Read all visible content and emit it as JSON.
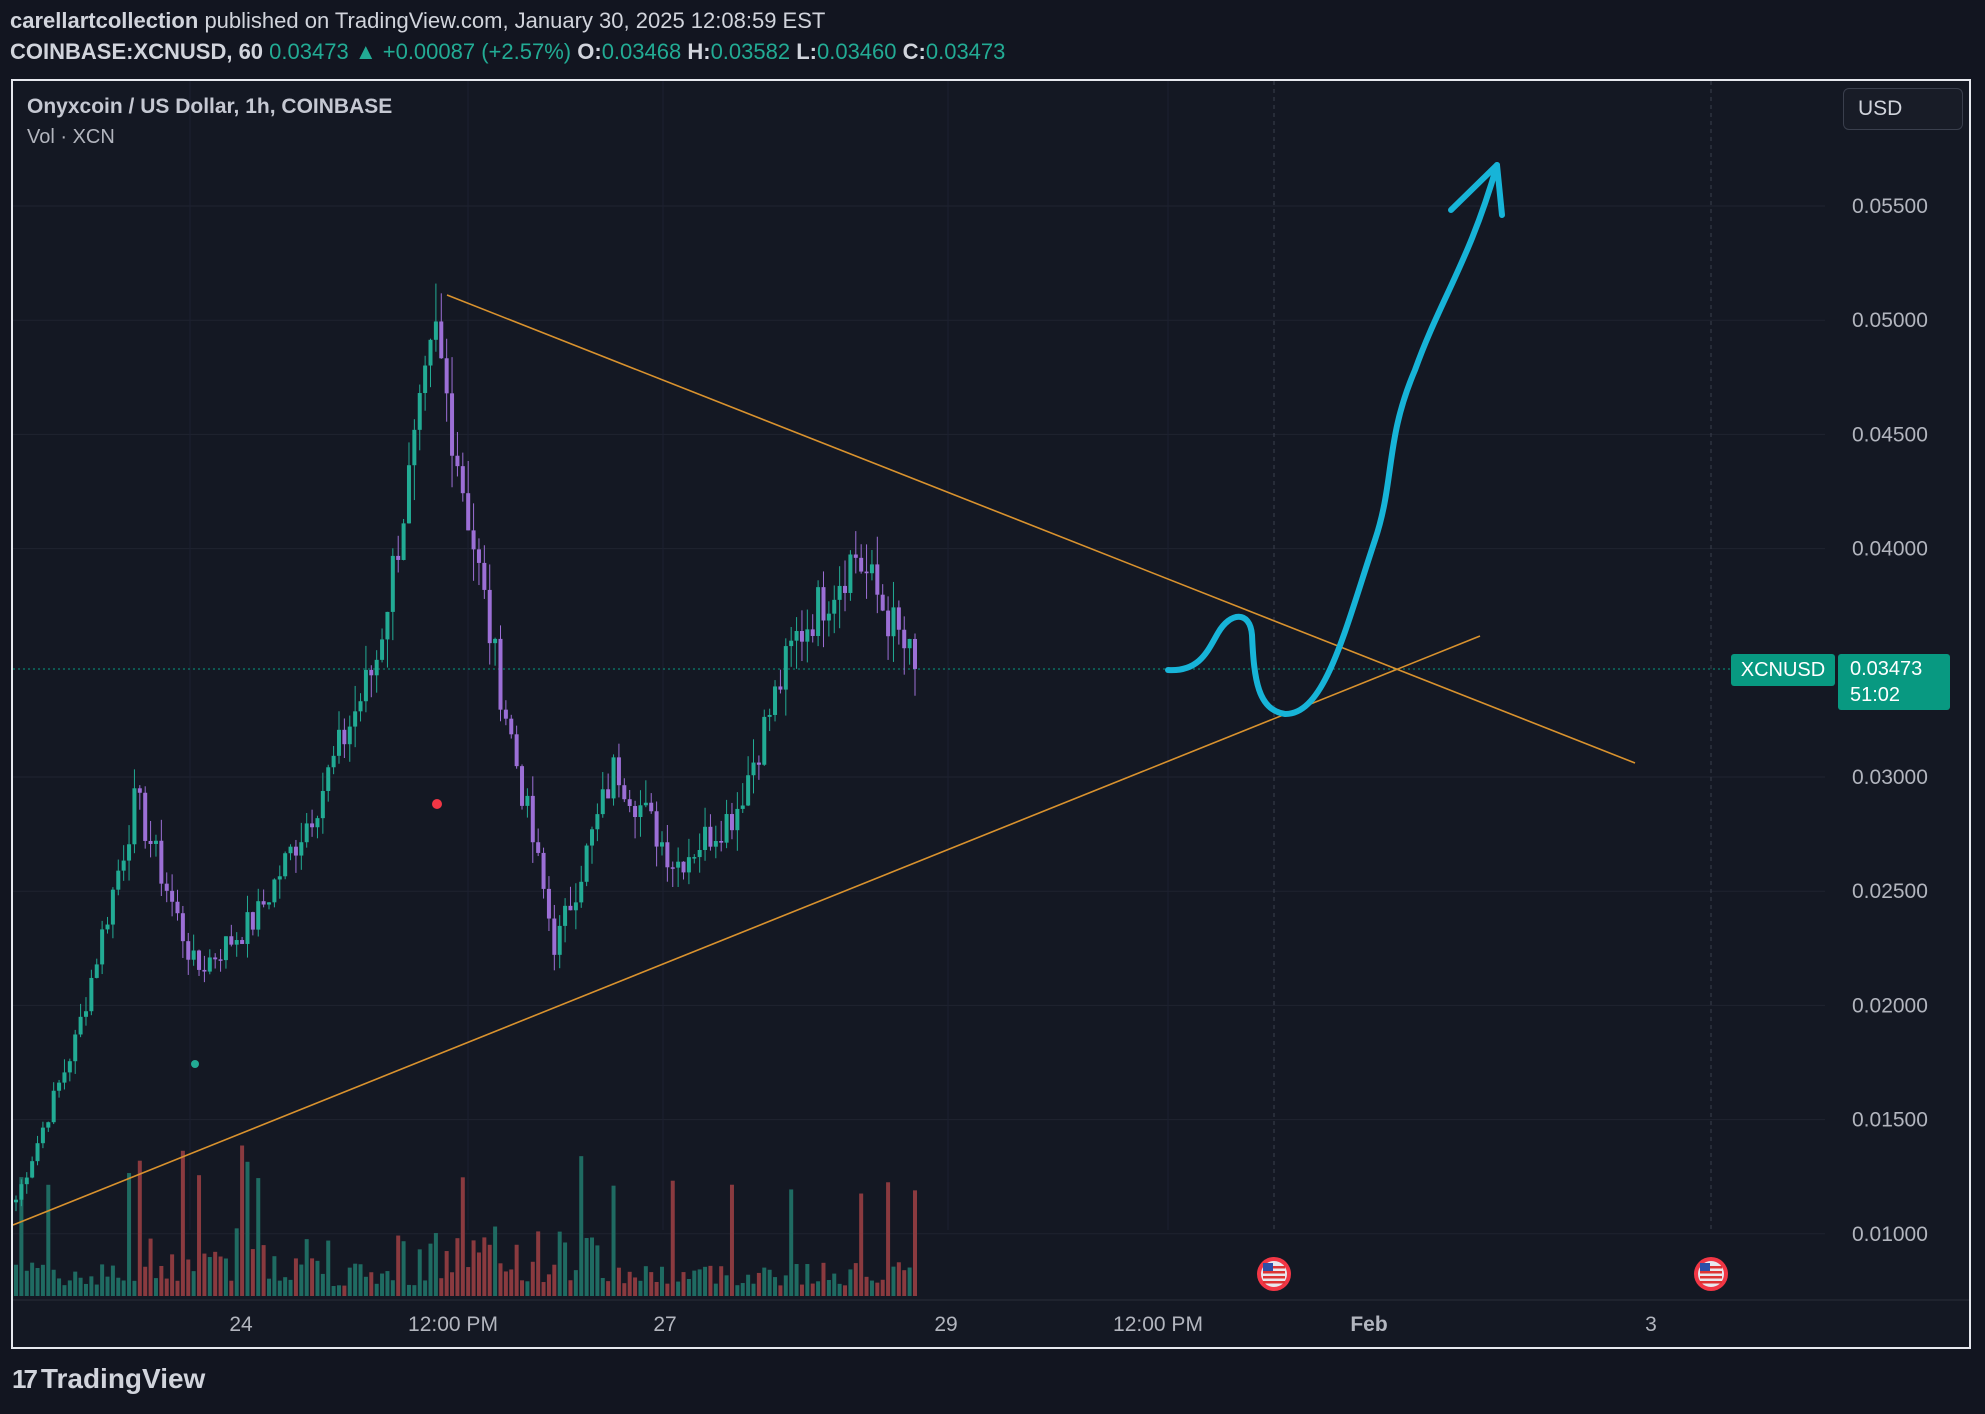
{
  "header": {
    "author": "carellartcollection",
    "published_text": "published on TradingView.com, January 30, 2025 12:08:59 EST",
    "symbol": "COINBASE:XCNUSD, 60",
    "last": "0.03473",
    "change": "+0.00087 (+2.57%)",
    "o_label": "O:",
    "o": "0.03468",
    "h_label": "H:",
    "h": "0.03582",
    "l_label": "L:",
    "l": "0.03460",
    "c_label": "C:",
    "c": "0.03473"
  },
  "legend": {
    "title": "Onyxcoin / US Dollar, 1h, COINBASE",
    "volume": "Vol · XCN"
  },
  "currency_button": "USD",
  "price_tag": {
    "symbol": "XCNUSD",
    "price": "0.03473",
    "countdown": "51:02"
  },
  "brand": "TradingView",
  "colors": {
    "up": "#22ab94",
    "down_candle": "#9c6fd6",
    "vol_up": "#1f6b62",
    "vol_down": "#8a3a3f",
    "trendline": "#d9922e",
    "annotation": "#17b4d8"
  },
  "chart_data": {
    "type": "candlestick",
    "y_axis": {
      "ticks": [
        "0.05500",
        "0.05000",
        "0.04500",
        "0.04000",
        "0.03000",
        "0.02500",
        "0.02000",
        "0.01500",
        "0.01000"
      ],
      "min": 0.0071,
      "max": 0.0592
    },
    "x_axis": {
      "ticks": [
        "24",
        "12:00 PM",
        "27",
        "29",
        "12:00 PM",
        "Feb",
        "3"
      ]
    },
    "current_price": 0.03473,
    "ohlc_key_points": [
      {
        "t": "Jan 23",
        "price": 0.0115
      },
      {
        "t": "Jan 23 late",
        "price": 0.0185
      },
      {
        "t": "Jan 24",
        "price": 0.029
      },
      {
        "t": "Jan 24 late",
        "price": 0.0215
      },
      {
        "t": "Jan 25",
        "price": 0.0238
      },
      {
        "t": "Jan 25 12:00 PM",
        "price": 0.0288
      },
      {
        "t": "Jan 26",
        "price": 0.035
      },
      {
        "t": "Jan 26 peak",
        "price": 0.0493
      },
      {
        "t": "Jan 27",
        "price": 0.035
      },
      {
        "t": "Jan 27 low",
        "price": 0.0225
      },
      {
        "t": "Jan 28",
        "price": 0.0305
      },
      {
        "t": "Jan 28 late",
        "price": 0.0262
      },
      {
        "t": "Jan 29",
        "price": 0.0285
      },
      {
        "t": "Jan 29 late",
        "price": 0.036
      },
      {
        "t": "Jan 30 high",
        "price": 0.0398
      },
      {
        "t": "Jan 30 12:00 PM",
        "price": 0.03473
      }
    ]
  }
}
